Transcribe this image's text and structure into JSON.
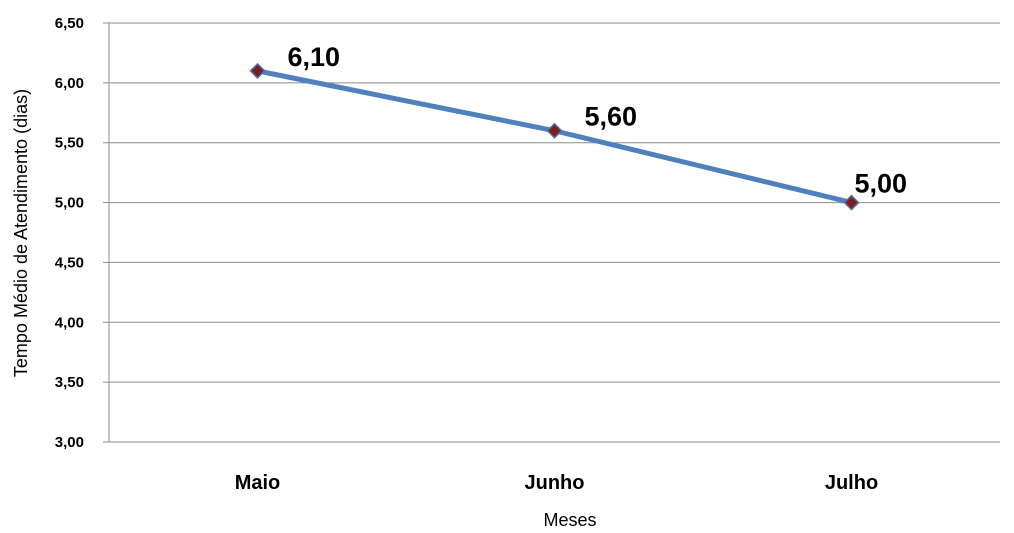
{
  "chart_data": {
    "type": "line",
    "categories": [
      "Maio",
      "Junho",
      "Julho"
    ],
    "series": [
      {
        "values": [
          6.1,
          5.6,
          5.0
        ]
      }
    ],
    "data_labels": [
      "6,10",
      "5,60",
      "5,00"
    ],
    "xlabel": "Meses",
    "ylabel": "Tempo Médio de Atendimento (dias)",
    "ylim": [
      3.0,
      6.5
    ],
    "yticks": [
      3.0,
      3.5,
      4.0,
      4.5,
      5.0,
      5.5,
      6.0,
      6.5
    ],
    "ytick_labels": [
      "3,00",
      "3,50",
      "4,00",
      "4,50",
      "5,00",
      "5,50",
      "6,00",
      "6,50"
    ],
    "grid": true,
    "legend": "none",
    "colors": {
      "line": "#4f81bd",
      "marker_fill": "#7b1e1e",
      "marker_edge": "#4f6fa8",
      "gridline": "#8c8c8c"
    }
  }
}
